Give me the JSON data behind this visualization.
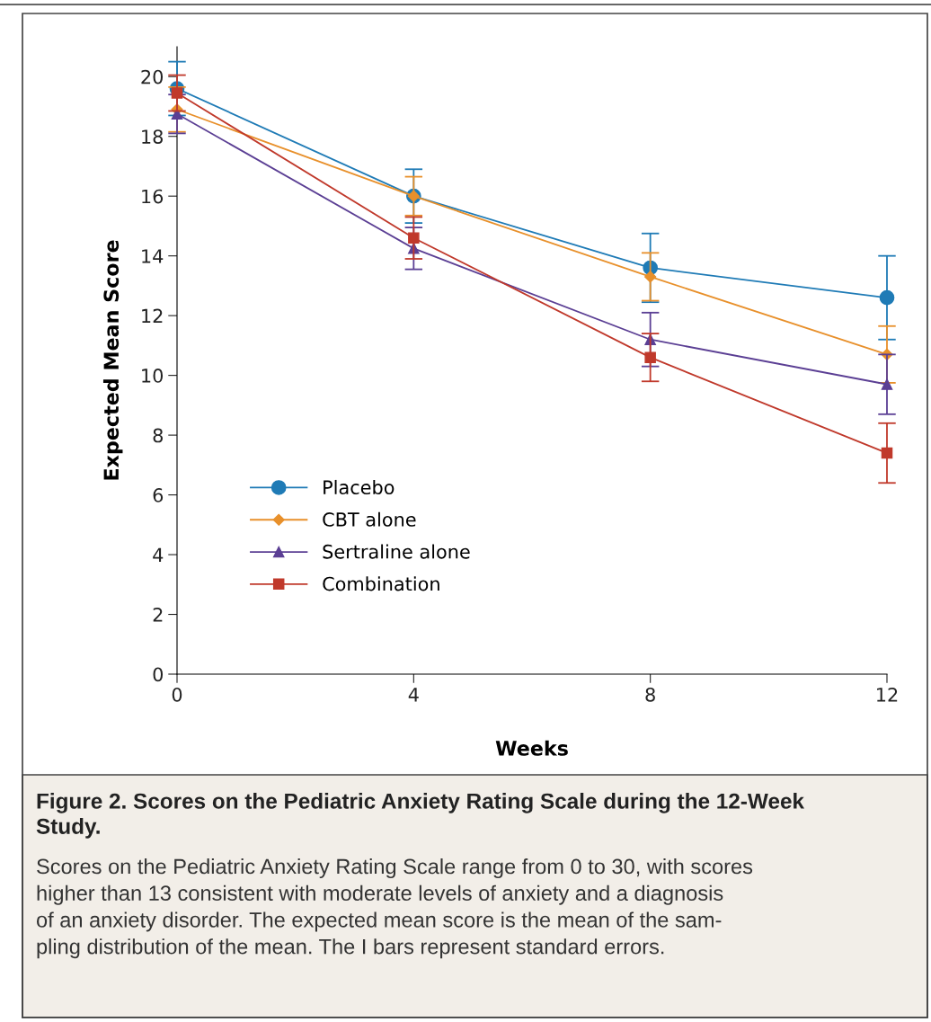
{
  "chart_data": {
    "type": "line",
    "title": "Figure 2. Scores on the Pediatric Anxiety Rating Scale during the 12-Week\nStudy.",
    "annotations": [
      "Scores on the Pediatric Anxiety Rating Scale range from 0 to 30, with scores\nhigher than 13 consistent with moderate levels of anxiety and a diagnosis\nof an anxiety disorder. The expected mean score is the mean of the sam-\npling distribution of the mean. The I bars represent standard errors."
    ],
    "xlabel": "Weeks",
    "ylabel": "Expected Mean Score",
    "x": [
      0,
      4,
      8,
      12
    ],
    "series": [
      {
        "name": "Placebo",
        "color": "#1f7bb6",
        "marker": "circle",
        "values": [
          19.6,
          16.0,
          13.6,
          12.6
        ],
        "errors": [
          0.9,
          0.9,
          1.15,
          1.4
        ]
      },
      {
        "name": "CBT alone",
        "color": "#e8902b",
        "marker": "diamond",
        "values": [
          18.9,
          16.0,
          13.3,
          10.7
        ],
        "errors": [
          0.75,
          0.65,
          0.8,
          0.95
        ]
      },
      {
        "name": "Sertraline alone",
        "color": "#5b3f94",
        "marker": "triangle",
        "values": [
          18.75,
          14.25,
          11.2,
          9.7
        ],
        "errors": [
          0.65,
          0.7,
          0.9,
          1.0
        ]
      },
      {
        "name": "Combination",
        "color": "#c0392b",
        "marker": "square",
        "values": [
          19.45,
          14.6,
          10.6,
          7.4
        ],
        "errors": [
          0.6,
          0.7,
          0.8,
          1.0
        ]
      }
    ],
    "xlim": [
      0,
      12
    ],
    "xticks": [
      0,
      4,
      8,
      12
    ],
    "ylim": [
      0,
      21
    ],
    "yticks": [
      0,
      2,
      4,
      6,
      8,
      10,
      12,
      14,
      16,
      18,
      20
    ],
    "grid": false,
    "legend": "lower left",
    "line_style": "solid"
  }
}
